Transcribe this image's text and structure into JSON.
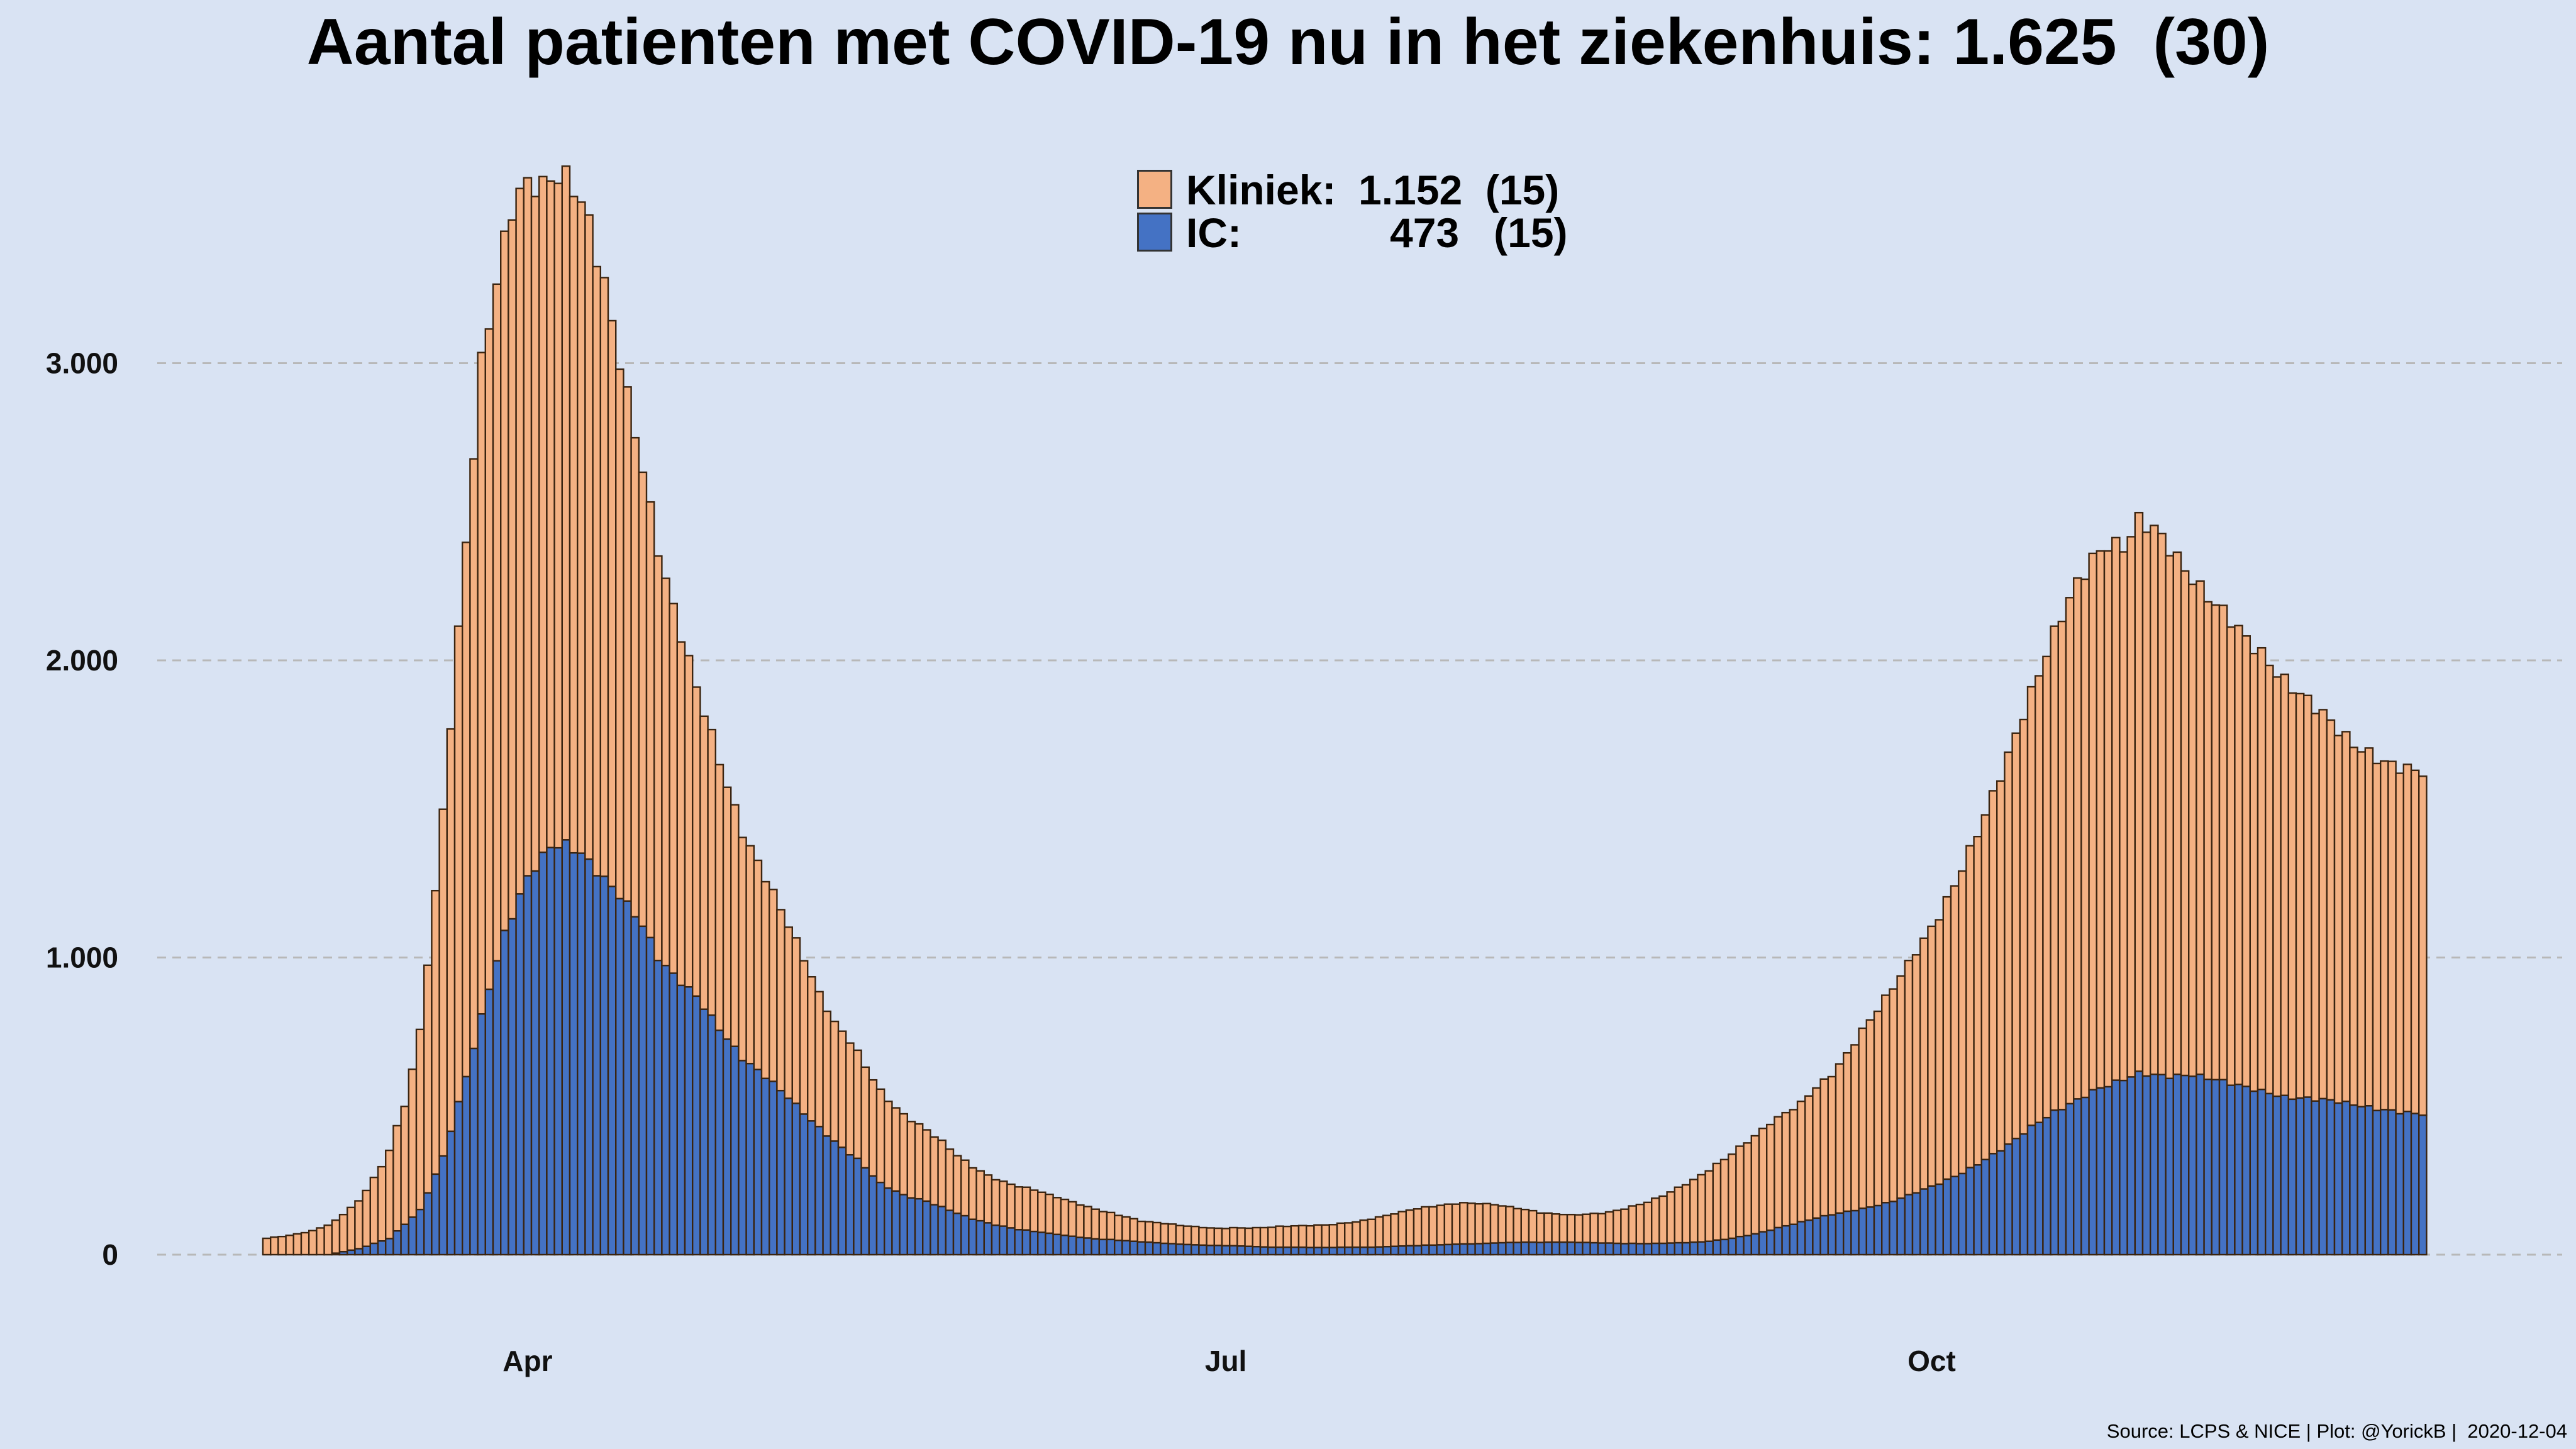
{
  "title": "Aantal patienten met COVID-19 nu in het ziekenhuis: 1.625  (30)",
  "source": "Source: LCPS & NICE | Plot: @YorickB |  2020-12-04",
  "legend": {
    "kliniek": {
      "label": "Kliniek:",
      "value": "1.152  (15)",
      "color": "#f4b183"
    },
    "ic": {
      "label": "IC:",
      "value": "473   (15)",
      "color": "#4472c4"
    }
  },
  "colors": {
    "kliniek": "#f4b183",
    "ic": "#4472c4",
    "bar_outline": "#3a2410",
    "grid": "#b8b8b8"
  },
  "chart_data": {
    "type": "bar",
    "stacked": true,
    "title": "Aantal patienten met COVID-19 nu in het ziekenhuis: 1.625  (30)",
    "xlabel": "",
    "ylabel": "",
    "ylim": [
      0,
      3900
    ],
    "yticks": [
      0,
      1000,
      2000,
      3000
    ],
    "ytick_labels": [
      "0",
      "1.000",
      "2.000",
      "3.000"
    ],
    "xtick_labels": [
      {
        "label": "Apr",
        "index": 34
      },
      {
        "label": "Jul",
        "index": 125
      },
      {
        "label": "Oct",
        "index": 217
      }
    ],
    "start_date": "2020-02-27",
    "end_date": "2020-12-04",
    "series": [
      {
        "name": "IC",
        "anchors": [
          [
            0,
            0
          ],
          [
            8,
            0
          ],
          [
            12,
            20
          ],
          [
            16,
            55
          ],
          [
            20,
            150
          ],
          [
            23,
            330
          ],
          [
            26,
            600
          ],
          [
            29,
            900
          ],
          [
            31,
            1080
          ],
          [
            34,
            1270
          ],
          [
            37,
            1375
          ],
          [
            39,
            1380
          ],
          [
            41,
            1350
          ],
          [
            43,
            1290
          ],
          [
            46,
            1210
          ],
          [
            49,
            1110
          ],
          [
            51,
            1000
          ],
          [
            53,
            940
          ],
          [
            56,
            870
          ],
          [
            59,
            760
          ],
          [
            62,
            660
          ],
          [
            65,
            600
          ],
          [
            68,
            530
          ],
          [
            71,
            450
          ],
          [
            74,
            380
          ],
          [
            77,
            320
          ],
          [
            80,
            240
          ],
          [
            83,
            200
          ],
          [
            86,
            180
          ],
          [
            89,
            150
          ],
          [
            92,
            120
          ],
          [
            95,
            100
          ],
          [
            98,
            85
          ],
          [
            101,
            75
          ],
          [
            104,
            65
          ],
          [
            107,
            55
          ],
          [
            110,
            50
          ],
          [
            113,
            45
          ],
          [
            116,
            40
          ],
          [
            119,
            35
          ],
          [
            122,
            32
          ],
          [
            125,
            30
          ],
          [
            128,
            28
          ],
          [
            131,
            25
          ],
          [
            134,
            25
          ],
          [
            137,
            24
          ],
          [
            140,
            25
          ],
          [
            143,
            25
          ],
          [
            146,
            27
          ],
          [
            149,
            30
          ],
          [
            152,
            32
          ],
          [
            155,
            35
          ],
          [
            158,
            37
          ],
          [
            161,
            40
          ],
          [
            164,
            42
          ],
          [
            167,
            42
          ],
          [
            170,
            42
          ],
          [
            173,
            40
          ],
          [
            176,
            38
          ],
          [
            179,
            37
          ],
          [
            182,
            38
          ],
          [
            185,
            40
          ],
          [
            188,
            45
          ],
          [
            191,
            55
          ],
          [
            194,
            70
          ],
          [
            197,
            90
          ],
          [
            200,
            110
          ],
          [
            203,
            130
          ],
          [
            206,
            145
          ],
          [
            209,
            160
          ],
          [
            212,
            180
          ],
          [
            215,
            210
          ],
          [
            218,
            240
          ],
          [
            221,
            275
          ],
          [
            224,
            320
          ],
          [
            227,
            370
          ],
          [
            230,
            430
          ],
          [
            233,
            480
          ],
          [
            236,
            520
          ],
          [
            238,
            550
          ],
          [
            240,
            570
          ],
          [
            242,
            590
          ],
          [
            244,
            610
          ],
          [
            246,
            605
          ],
          [
            248,
            600
          ],
          [
            251,
            605
          ],
          [
            254,
            590
          ],
          [
            257,
            570
          ],
          [
            260,
            550
          ],
          [
            263,
            530
          ],
          [
            266,
            525
          ],
          [
            269,
            520
          ],
          [
            272,
            505
          ],
          [
            275,
            490
          ],
          [
            278,
            480
          ],
          [
            281,
            473
          ]
        ]
      },
      {
        "name": "Kliniek",
        "anchors": [
          [
            0,
            55
          ],
          [
            3,
            65
          ],
          [
            6,
            80
          ],
          [
            9,
            110
          ],
          [
            12,
            160
          ],
          [
            15,
            250
          ],
          [
            18,
            400
          ],
          [
            20,
            600
          ],
          [
            22,
            950
          ],
          [
            24,
            1370
          ],
          [
            26,
            1800
          ],
          [
            28,
            2200
          ],
          [
            30,
            2280
          ],
          [
            32,
            2380
          ],
          [
            34,
            2340
          ],
          [
            36,
            2250
          ],
          [
            38,
            2250
          ],
          [
            40,
            2230
          ],
          [
            42,
            2150
          ],
          [
            44,
            2000
          ],
          [
            46,
            1800
          ],
          [
            48,
            1620
          ],
          [
            50,
            1450
          ],
          [
            52,
            1300
          ],
          [
            54,
            1170
          ],
          [
            56,
            1040
          ],
          [
            58,
            950
          ],
          [
            60,
            850
          ],
          [
            62,
            760
          ],
          [
            64,
            700
          ],
          [
            66,
            640
          ],
          [
            68,
            580
          ],
          [
            70,
            520
          ],
          [
            72,
            450
          ],
          [
            74,
            400
          ],
          [
            76,
            380
          ],
          [
            78,
            340
          ],
          [
            80,
            310
          ],
          [
            82,
            280
          ],
          [
            84,
            260
          ],
          [
            86,
            240
          ],
          [
            88,
            220
          ],
          [
            90,
            195
          ],
          [
            92,
            175
          ],
          [
            94,
            160
          ],
          [
            96,
            150
          ],
          [
            98,
            145
          ],
          [
            100,
            140
          ],
          [
            102,
            130
          ],
          [
            104,
            120
          ],
          [
            106,
            110
          ],
          [
            108,
            100
          ],
          [
            110,
            90
          ],
          [
            112,
            80
          ],
          [
            114,
            70
          ],
          [
            116,
            68
          ],
          [
            118,
            65
          ],
          [
            120,
            62
          ],
          [
            122,
            60
          ],
          [
            124,
            58
          ],
          [
            126,
            60
          ],
          [
            128,
            62
          ],
          [
            130,
            65
          ],
          [
            132,
            70
          ],
          [
            134,
            72
          ],
          [
            136,
            74
          ],
          [
            138,
            76
          ],
          [
            140,
            80
          ],
          [
            142,
            85
          ],
          [
            144,
            95
          ],
          [
            146,
            105
          ],
          [
            148,
            115
          ],
          [
            150,
            125
          ],
          [
            152,
            130
          ],
          [
            154,
            135
          ],
          [
            156,
            138
          ],
          [
            158,
            135
          ],
          [
            160,
            130
          ],
          [
            162,
            120
          ],
          [
            164,
            110
          ],
          [
            166,
            100
          ],
          [
            168,
            95
          ],
          [
            170,
            92
          ],
          [
            172,
            95
          ],
          [
            174,
            100
          ],
          [
            176,
            110
          ],
          [
            178,
            125
          ],
          [
            180,
            140
          ],
          [
            182,
            160
          ],
          [
            184,
            185
          ],
          [
            186,
            210
          ],
          [
            188,
            240
          ],
          [
            190,
            270
          ],
          [
            192,
            300
          ],
          [
            194,
            330
          ],
          [
            196,
            360
          ],
          [
            198,
            380
          ],
          [
            200,
            400
          ],
          [
            202,
            440
          ],
          [
            204,
            470
          ],
          [
            206,
            530
          ],
          [
            208,
            600
          ],
          [
            210,
            660
          ],
          [
            212,
            720
          ],
          [
            214,
            780
          ],
          [
            216,
            840
          ],
          [
            218,
            900
          ],
          [
            220,
            980
          ],
          [
            222,
            1070
          ],
          [
            224,
            1160
          ],
          [
            226,
            1260
          ],
          [
            228,
            1360
          ],
          [
            230,
            1460
          ],
          [
            232,
            1560
          ],
          [
            234,
            1660
          ],
          [
            236,
            1740
          ],
          [
            238,
            1790
          ],
          [
            240,
            1820
          ],
          [
            242,
            1790
          ],
          [
            244,
            1860
          ],
          [
            246,
            1840
          ],
          [
            248,
            1780
          ],
          [
            250,
            1700
          ],
          [
            252,
            1640
          ],
          [
            254,
            1600
          ],
          [
            256,
            1560
          ],
          [
            258,
            1510
          ],
          [
            260,
            1470
          ],
          [
            262,
            1420
          ],
          [
            264,
            1380
          ],
          [
            266,
            1340
          ],
          [
            268,
            1300
          ],
          [
            270,
            1250
          ],
          [
            272,
            1210
          ],
          [
            274,
            1190
          ],
          [
            276,
            1170
          ],
          [
            278,
            1160
          ],
          [
            280,
            1155
          ],
          [
            281,
            1152
          ]
        ]
      }
    ]
  }
}
